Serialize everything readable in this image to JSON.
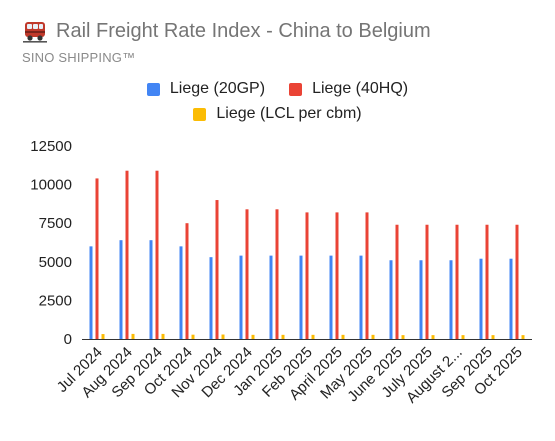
{
  "header": {
    "icon": "train-icon",
    "title": "Rail Freight Rate Index - China to Belgium",
    "subtitle": "SINO SHIPPING™"
  },
  "chart_data": {
    "type": "bar",
    "title": "Rail Freight Rate Index - China to Belgium",
    "subtitle": "SINO SHIPPING™",
    "xlabel": "",
    "ylabel": "",
    "ylim": [
      0,
      12500
    ],
    "yticks": [
      0,
      2500,
      5000,
      7500,
      10000,
      12500
    ],
    "grid": false,
    "legend_position": "top",
    "categories": [
      "Jul 2024",
      "Aug 2024",
      "Sep 2024",
      "Oct 2024",
      "Nov 2024",
      "Dec 2024",
      "Jan 2025",
      "Feb 2025",
      "April 2025",
      "May 2025",
      "June 2025",
      "July 2025",
      "August 2...",
      "Sep 2025",
      "Oct 2025"
    ],
    "series": [
      {
        "name": "Liege (20GP)",
        "color": "#4285f4",
        "values": [
          6000,
          6400,
          6400,
          6000,
          5300,
          5400,
          5400,
          5400,
          5400,
          5400,
          5100,
          5100,
          5100,
          5200,
          5200
        ]
      },
      {
        "name": "Liege (40HQ)",
        "color": "#ea4335",
        "values": [
          10400,
          10900,
          10900,
          7500,
          9000,
          8400,
          8400,
          8200,
          8200,
          8200,
          7400,
          7400,
          7400,
          7400,
          7400
        ]
      },
      {
        "name": "Liege (LCL per cbm)",
        "color": "#fbbc04",
        "values": [
          320,
          330,
          330,
          280,
          290,
          270,
          270,
          270,
          270,
          270,
          250,
          250,
          250,
          250,
          250
        ]
      }
    ]
  }
}
